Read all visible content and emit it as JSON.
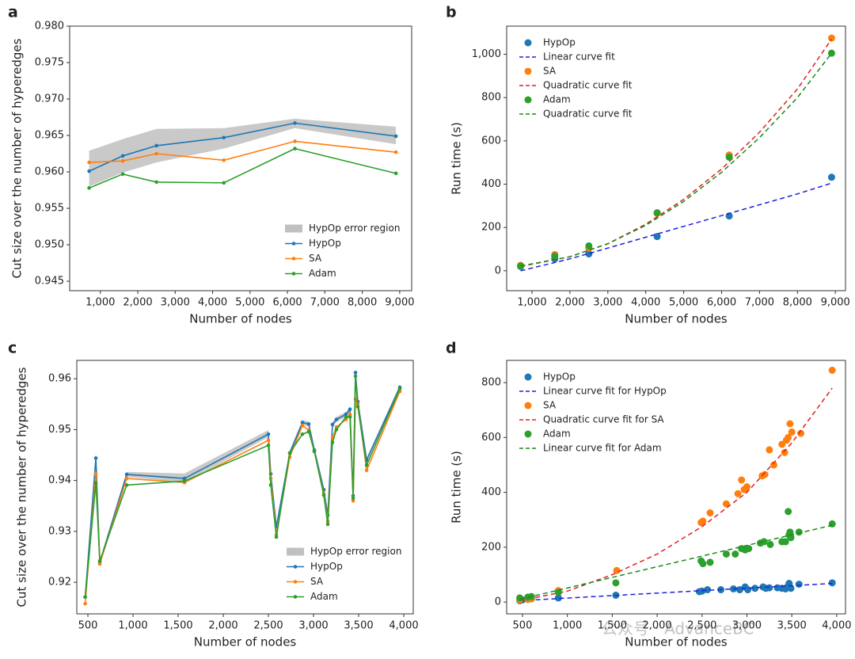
{
  "chart_data": [
    {
      "type": "line",
      "panel_label": "a",
      "xlabel": "Number of nodes",
      "ylabel": "Cut size over the number of hyperedges",
      "x": [
        700,
        1600,
        2500,
        4300,
        6200,
        8900
      ],
      "band": {
        "name": "HypOp error region",
        "color": "#c0c0c0",
        "upper": [
          0.9629,
          0.9645,
          0.9659,
          0.966,
          0.9673,
          0.9662
        ],
        "lower": [
          0.958,
          0.9599,
          0.9613,
          0.9632,
          0.966,
          0.9638
        ]
      },
      "series": [
        {
          "name": "HypOp",
          "color": "#1f77b4",
          "values": [
            0.9601,
            0.9622,
            0.9636,
            0.9647,
            0.9667,
            0.9649
          ]
        },
        {
          "name": "SA",
          "color": "#ff7f0e",
          "values": [
            0.9613,
            0.9615,
            0.9625,
            0.9616,
            0.9642,
            0.9627
          ]
        },
        {
          "name": "Adam",
          "color": "#2ca02c",
          "values": [
            0.9578,
            0.9597,
            0.9586,
            0.9585,
            0.9632,
            0.9598
          ]
        }
      ],
      "xlim": [
        180,
        9320
      ],
      "ylim": [
        0.9437,
        0.98
      ],
      "xticks": [
        {
          "value": 1000,
          "label": "1,000"
        },
        {
          "value": 2000,
          "label": "2,000"
        },
        {
          "value": 3000,
          "label": "3,000"
        },
        {
          "value": 4000,
          "label": "4,000"
        },
        {
          "value": 5000,
          "label": "5,000"
        },
        {
          "value": 6000,
          "label": "6,000"
        },
        {
          "value": 7000,
          "label": "7,000"
        },
        {
          "value": 8000,
          "label": "8,000"
        },
        {
          "value": 9000,
          "label": "9,000"
        }
      ],
      "yticks": [
        0.945,
        {
          "value": 0.95,
          "label": "0.950"
        },
        0.955,
        {
          "value": 0.96,
          "label": "0.960"
        },
        0.965,
        {
          "value": 0.97,
          "label": "0.970"
        },
        0.975,
        {
          "value": 0.98,
          "label": "0.980"
        }
      ],
      "legend": "lower right"
    },
    {
      "type": "scatter",
      "panel_label": "b",
      "xlabel": "Number of nodes",
      "ylabel": "Run time (s)",
      "series": [
        {
          "name": "HypOp",
          "color": "#1f77b4",
          "style": "scatter",
          "x": [
            700,
            1600,
            2500,
            4300,
            6200,
            8900
          ],
          "values": [
            20,
            55,
            78,
            158,
            253,
            432
          ]
        },
        {
          "name": "Linear curve fit",
          "color": "#2020e0",
          "style": "dashed",
          "x": [
            700,
            2000,
            3000,
            4000,
            5000,
            6000,
            7000,
            8000,
            8900
          ],
          "values": [
            0,
            55,
            105,
            155,
            205,
            255,
            305,
            355,
            405
          ]
        },
        {
          "name": "SA",
          "color": "#ff7f0e",
          "style": "scatter",
          "x": [
            700,
            1600,
            2500,
            4300,
            6200,
            8900
          ],
          "values": [
            25,
            75,
            105,
            265,
            535,
            1075
          ]
        },
        {
          "name": "Quadratic curve fit",
          "color": "#e02020",
          "style": "dashed",
          "x": [
            700,
            2000,
            3000,
            4000,
            5000,
            6000,
            7000,
            8000,
            8900
          ],
          "values": [
            20,
            65,
            125,
            215,
            330,
            470,
            640,
            840,
            1070
          ]
        },
        {
          "name": "Adam",
          "color": "#2ca02c",
          "style": "scatter",
          "x": [
            700,
            1600,
            2500,
            4300,
            6200,
            8900
          ],
          "values": [
            22,
            68,
            115,
            268,
            525,
            1005
          ]
        },
        {
          "name": "Quadratic curve fit",
          "color": "#1a8a1a",
          "style": "dashed",
          "x": [
            700,
            2000,
            3000,
            4000,
            5000,
            6000,
            7000,
            8000,
            8900
          ],
          "values": [
            22,
            65,
            125,
            210,
            320,
            455,
            615,
            800,
            1005
          ]
        }
      ],
      "xlim": [
        332,
        9267
      ],
      "ylim": [
        -92,
        1130
      ],
      "xticks": [
        {
          "value": 1000,
          "label": "1,000"
        },
        {
          "value": 2000,
          "label": "2,000"
        },
        {
          "value": 3000,
          "label": "3,000"
        },
        {
          "value": 4000,
          "label": "4,000"
        },
        {
          "value": 5000,
          "label": "5,000"
        },
        {
          "value": 6000,
          "label": "6,000"
        },
        {
          "value": 7000,
          "label": "7,000"
        },
        {
          "value": 8000,
          "label": "8,000"
        },
        {
          "value": 9000,
          "label": "9,000"
        }
      ],
      "yticks": [
        0,
        200,
        400,
        600,
        800,
        {
          "value": 1000,
          "label": "1,000"
        }
      ],
      "legend": "upper left"
    },
    {
      "type": "line",
      "panel_label": "c",
      "xlabel": "Number of nodes",
      "ylabel": "Cut size over the number of hyperedges",
      "x": [
        470,
        588,
        632,
        930,
        1570,
        2500,
        2526,
        2588,
        2737,
        2877,
        2947,
        3009,
        3114,
        3158,
        3210,
        3254,
        3360,
        3404,
        3439,
        3465,
        3491,
        3588,
        3956
      ],
      "band": {
        "name": "HypOp error region",
        "color": "#c0c0c0",
        "upper": [
          0.9176,
          0.9456,
          0.9244,
          0.9417,
          0.9414,
          0.9499,
          0.9418,
          0.9314,
          0.9459,
          0.9519,
          0.9516,
          0.9465,
          0.9387,
          0.9337,
          0.9515,
          0.9525,
          0.9535,
          0.9545,
          0.9375,
          0.9617,
          0.956,
          0.9445,
          0.9588
        ],
        "lower": [
          0.9166,
          0.9432,
          0.9234,
          0.9407,
          0.9396,
          0.9485,
          0.9408,
          0.9304,
          0.9449,
          0.9509,
          0.9506,
          0.9455,
          0.9377,
          0.9327,
          0.9505,
          0.9515,
          0.9525,
          0.9535,
          0.9365,
          0.9607,
          0.955,
          0.9435,
          0.9578
        ]
      },
      "series": [
        {
          "name": "HypOp",
          "color": "#1f77b4",
          "values": [
            0.9171,
            0.9444,
            0.9239,
            0.9412,
            0.9404,
            0.9491,
            0.9413,
            0.9309,
            0.9454,
            0.9514,
            0.9511,
            0.946,
            0.9382,
            0.9332,
            0.951,
            0.952,
            0.953,
            0.954,
            0.937,
            0.9612,
            0.9555,
            0.944,
            0.9583
          ]
        },
        {
          "name": "SA",
          "color": "#ff7f0e",
          "values": [
            0.9158,
            0.9413,
            0.9236,
            0.9404,
            0.9396,
            0.9479,
            0.9404,
            0.9293,
            0.9446,
            0.9508,
            0.9499,
            0.9457,
            0.9374,
            0.932,
            0.9485,
            0.9505,
            0.952,
            0.953,
            0.936,
            0.956,
            0.955,
            0.942,
            0.9575
          ]
        },
        {
          "name": "Adam",
          "color": "#2ca02c",
          "values": [
            0.9171,
            0.9395,
            0.9242,
            0.9391,
            0.9399,
            0.9469,
            0.9391,
            0.9289,
            0.9454,
            0.9491,
            0.9496,
            0.9457,
            0.9371,
            0.9314,
            0.9475,
            0.95,
            0.9525,
            0.9525,
            0.9365,
            0.9605,
            0.9545,
            0.943,
            0.958
          ]
        }
      ],
      "xlim": [
        377,
        4105
      ],
      "ylim": [
        0.9138,
        0.9636
      ],
      "xticks": [
        500,
        {
          "value": 1000,
          "label": "1,000"
        },
        {
          "value": 1500,
          "label": "1,500"
        },
        {
          "value": 2000,
          "label": "2,000"
        },
        {
          "value": 2500,
          "label": "2,500"
        },
        {
          "value": 3000,
          "label": "3,000"
        },
        {
          "value": 3500,
          "label": "3,500"
        },
        {
          "value": 4000,
          "label": "4,000"
        }
      ],
      "yticks": [
        0.92,
        0.93,
        0.94,
        0.95,
        0.96
      ],
      "legend": "lower right"
    },
    {
      "type": "scatter",
      "panel_label": "d",
      "xlabel": "Number of nodes",
      "ylabel": "Run time (s)",
      "series": [
        {
          "name": "HypOp",
          "color": "#1f77b4",
          "style": "scatter",
          "x": [
            470,
            500,
            560,
            600,
            900,
            1540,
            2470,
            2500,
            2560,
            2710,
            2850,
            2920,
            2980,
            3010,
            3090,
            3180,
            3210,
            3250,
            3340,
            3390,
            3430,
            3450,
            3470,
            3490,
            3580,
            3950
          ],
          "values": [
            5,
            8,
            10,
            12,
            15,
            25,
            38,
            40,
            45,
            45,
            48,
            45,
            55,
            45,
            50,
            55,
            50,
            52,
            52,
            50,
            48,
            55,
            68,
            50,
            65,
            70
          ]
        },
        {
          "name": "Linear curve fit for HypOp",
          "color": "#2020e0",
          "style": "dashed",
          "x": [
            470,
            3950
          ],
          "values": [
            5,
            68
          ]
        },
        {
          "name": "SA",
          "color": "#ff7f0e",
          "style": "scatter",
          "x": [
            470,
            560,
            600,
            900,
            1550,
            2490,
            2510,
            2590,
            2770,
            2900,
            2940,
            2970,
            3000,
            3170,
            3200,
            3250,
            3300,
            3390,
            3420,
            3440,
            3460,
            3480,
            3500,
            3600,
            3950
          ],
          "values": [
            8,
            10,
            12,
            42,
            115,
            290,
            295,
            325,
            358,
            395,
            445,
            410,
            420,
            460,
            465,
            555,
            500,
            575,
            545,
            590,
            600,
            650,
            620,
            615,
            845
          ]
        },
        {
          "name": "Quadratic curve fit for SA",
          "color": "#e02020",
          "style": "dashed",
          "x": [
            470,
            1000,
            1500,
            2000,
            2500,
            3000,
            3500,
            3950
          ],
          "values": [
            5,
            40,
            100,
            175,
            275,
            400,
            580,
            780
          ]
        },
        {
          "name": "Adam",
          "color": "#2ca02c",
          "style": "scatter",
          "x": [
            470,
            560,
            600,
            900,
            1540,
            2490,
            2510,
            2590,
            2770,
            2870,
            2940,
            2980,
            3020,
            3150,
            3190,
            3260,
            3390,
            3430,
            3460,
            3470,
            3480,
            3490,
            3580,
            3950
          ],
          "values": [
            15,
            18,
            20,
            35,
            70,
            150,
            140,
            145,
            175,
            175,
            195,
            190,
            195,
            215,
            220,
            210,
            220,
            220,
            330,
            245,
            255,
            235,
            255,
            285
          ]
        },
        {
          "name": "Linear curve fit for Adam",
          "color": "#1a8a1a",
          "style": "dashed",
          "x": [
            470,
            3950
          ],
          "values": [
            10,
            280
          ]
        }
      ],
      "xlim": [
        324,
        4098
      ],
      "ylim": [
        -43,
        881
      ],
      "xticks": [
        500,
        {
          "value": 1000,
          "label": "1,000"
        },
        {
          "value": 1500,
          "label": "1,500"
        },
        {
          "value": 2000,
          "label": "2,000"
        },
        {
          "value": 2500,
          "label": "2,500"
        },
        {
          "value": 3000,
          "label": "3,000"
        },
        {
          "value": 3500,
          "label": "3,500"
        },
        {
          "value": 4000,
          "label": "4,000"
        }
      ],
      "yticks": [
        0,
        200,
        400,
        600,
        800
      ],
      "legend": "upper left"
    }
  ],
  "watermark": "公众号 · AdvanceBC"
}
